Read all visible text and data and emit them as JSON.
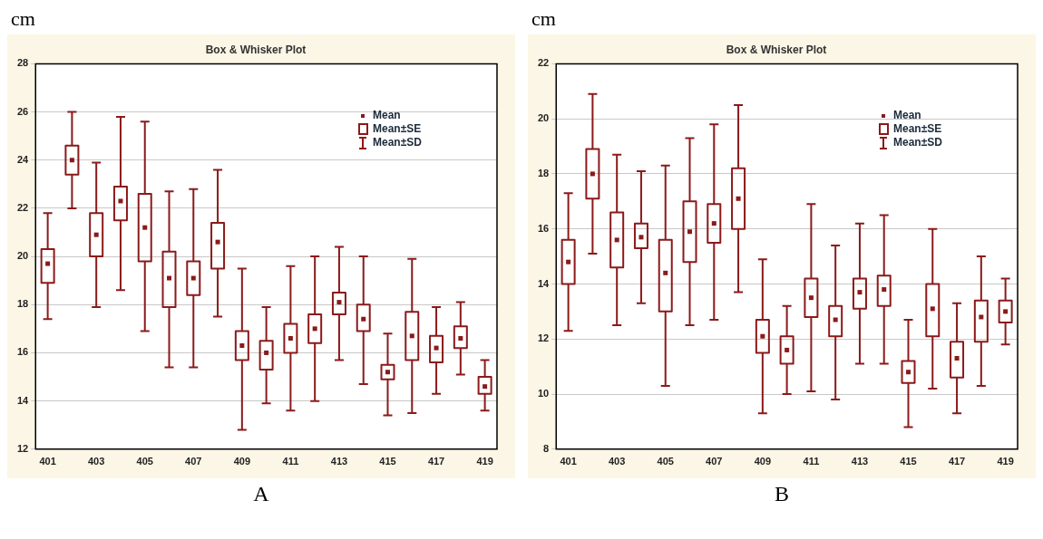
{
  "chart_data": [
    {
      "type": "box",
      "title": "Box & Whisker Plot",
      "ylabel": "cm",
      "xlabel": "A",
      "color": "#8b1a1a",
      "grid": "y",
      "annotations": [
        "Mean",
        "Mean±SE",
        "Mean±SD"
      ],
      "categories": [
        "401",
        null,
        "403",
        null,
        "405",
        null,
        "407",
        null,
        "409",
        null,
        "411",
        null,
        "413",
        null,
        "415",
        null,
        "417",
        null,
        "419"
      ],
      "ylim": [
        12,
        28
      ],
      "yticks": [
        12,
        14,
        16,
        18,
        20,
        22,
        24,
        26,
        28
      ],
      "boxes": [
        {
          "low": 17.4,
          "q1": 18.9,
          "median": 19.7,
          "q3": 20.3,
          "high": 21.8
        },
        {
          "low": 22.0,
          "q1": 23.4,
          "median": 24.0,
          "q3": 24.6,
          "high": 26.0
        },
        {
          "low": 17.9,
          "q1": 20.0,
          "median": 20.9,
          "q3": 21.8,
          "high": 23.9
        },
        {
          "low": 18.6,
          "q1": 21.5,
          "median": 22.3,
          "q3": 22.9,
          "high": 25.8
        },
        {
          "low": 16.9,
          "q1": 19.8,
          "median": 21.2,
          "q3": 22.6,
          "high": 25.6
        },
        {
          "low": 15.4,
          "q1": 17.9,
          "median": 19.1,
          "q3": 20.2,
          "high": 22.7
        },
        {
          "low": 15.4,
          "q1": 18.4,
          "median": 19.1,
          "q3": 19.8,
          "high": 22.8
        },
        {
          "low": 17.5,
          "q1": 19.5,
          "median": 20.6,
          "q3": 21.4,
          "high": 23.6
        },
        {
          "low": 12.8,
          "q1": 15.7,
          "median": 16.3,
          "q3": 16.9,
          "high": 19.5
        },
        {
          "low": 13.9,
          "q1": 15.3,
          "median": 16.0,
          "q3": 16.5,
          "high": 17.9
        },
        {
          "low": 13.6,
          "q1": 16.0,
          "median": 16.6,
          "q3": 17.2,
          "high": 19.6
        },
        {
          "low": 14.0,
          "q1": 16.4,
          "median": 17.0,
          "q3": 17.6,
          "high": 20.0
        },
        {
          "low": 15.7,
          "q1": 17.6,
          "median": 18.1,
          "q3": 18.5,
          "high": 20.4
        },
        {
          "low": 14.7,
          "q1": 16.9,
          "median": 17.4,
          "q3": 18.0,
          "high": 20.0
        },
        {
          "low": 13.4,
          "q1": 14.9,
          "median": 15.2,
          "q3": 15.5,
          "high": 16.8
        },
        {
          "low": 13.5,
          "q1": 15.7,
          "median": 16.7,
          "q3": 17.7,
          "high": 19.9
        },
        {
          "low": 14.3,
          "q1": 15.6,
          "median": 16.2,
          "q3": 16.7,
          "high": 17.9
        },
        {
          "low": 15.1,
          "q1": 16.2,
          "median": 16.6,
          "q3": 17.1,
          "high": 18.1
        },
        {
          "low": 13.6,
          "q1": 14.3,
          "median": 14.6,
          "q3": 15.0,
          "high": 15.7
        }
      ]
    },
    {
      "type": "box",
      "title": "Box & Whisker Plot",
      "ylabel": "cm",
      "xlabel": "B",
      "color": "#8b1a1a",
      "grid": "y",
      "annotations": [
        "Mean",
        "Mean±SE",
        "Mean±SD"
      ],
      "categories": [
        "401",
        null,
        "403",
        null,
        "405",
        null,
        "407",
        null,
        "409",
        null,
        "411",
        null,
        "413",
        null,
        "415",
        null,
        "417",
        null,
        "419"
      ],
      "ylim": [
        8,
        22
      ],
      "yticks": [
        8,
        10,
        12,
        14,
        16,
        18,
        20,
        22
      ],
      "boxes": [
        {
          "low": 12.3,
          "q1": 14.0,
          "median": 14.8,
          "q3": 15.6,
          "high": 17.3
        },
        {
          "low": 15.1,
          "q1": 17.1,
          "median": 18.0,
          "q3": 18.9,
          "high": 20.9
        },
        {
          "low": 12.5,
          "q1": 14.6,
          "median": 15.6,
          "q3": 16.6,
          "high": 18.7
        },
        {
          "low": 13.3,
          "q1": 15.3,
          "median": 15.7,
          "q3": 16.2,
          "high": 18.1
        },
        {
          "low": 10.3,
          "q1": 13.0,
          "median": 14.4,
          "q3": 15.6,
          "high": 18.3
        },
        {
          "low": 12.5,
          "q1": 14.8,
          "median": 15.9,
          "q3": 17.0,
          "high": 19.3
        },
        {
          "low": 12.7,
          "q1": 15.5,
          "median": 16.2,
          "q3": 16.9,
          "high": 19.8
        },
        {
          "low": 13.7,
          "q1": 16.0,
          "median": 17.1,
          "q3": 18.2,
          "high": 20.5
        },
        {
          "low": 9.3,
          "q1": 11.5,
          "median": 12.1,
          "q3": 12.7,
          "high": 14.9
        },
        {
          "low": 10.0,
          "q1": 11.1,
          "median": 11.6,
          "q3": 12.1,
          "high": 13.2
        },
        {
          "low": 10.1,
          "q1": 12.8,
          "median": 13.5,
          "q3": 14.2,
          "high": 16.9
        },
        {
          "low": 9.8,
          "q1": 12.1,
          "median": 12.7,
          "q3": 13.2,
          "high": 15.4
        },
        {
          "low": 11.1,
          "q1": 13.1,
          "median": 13.7,
          "q3": 14.2,
          "high": 16.2
        },
        {
          "low": 11.1,
          "q1": 13.2,
          "median": 13.8,
          "q3": 14.3,
          "high": 16.5
        },
        {
          "low": 8.8,
          "q1": 10.4,
          "median": 10.8,
          "q3": 11.2,
          "high": 12.7
        },
        {
          "low": 10.2,
          "q1": 12.1,
          "median": 13.1,
          "q3": 14.0,
          "high": 16.0
        },
        {
          "low": 9.3,
          "q1": 10.6,
          "median": 11.3,
          "q3": 11.9,
          "high": 13.3
        },
        {
          "low": 10.3,
          "q1": 11.9,
          "median": 12.8,
          "q3": 13.4,
          "high": 15.0
        },
        {
          "low": 11.8,
          "q1": 12.6,
          "median": 13.0,
          "q3": 13.4,
          "high": 14.2
        }
      ]
    }
  ]
}
